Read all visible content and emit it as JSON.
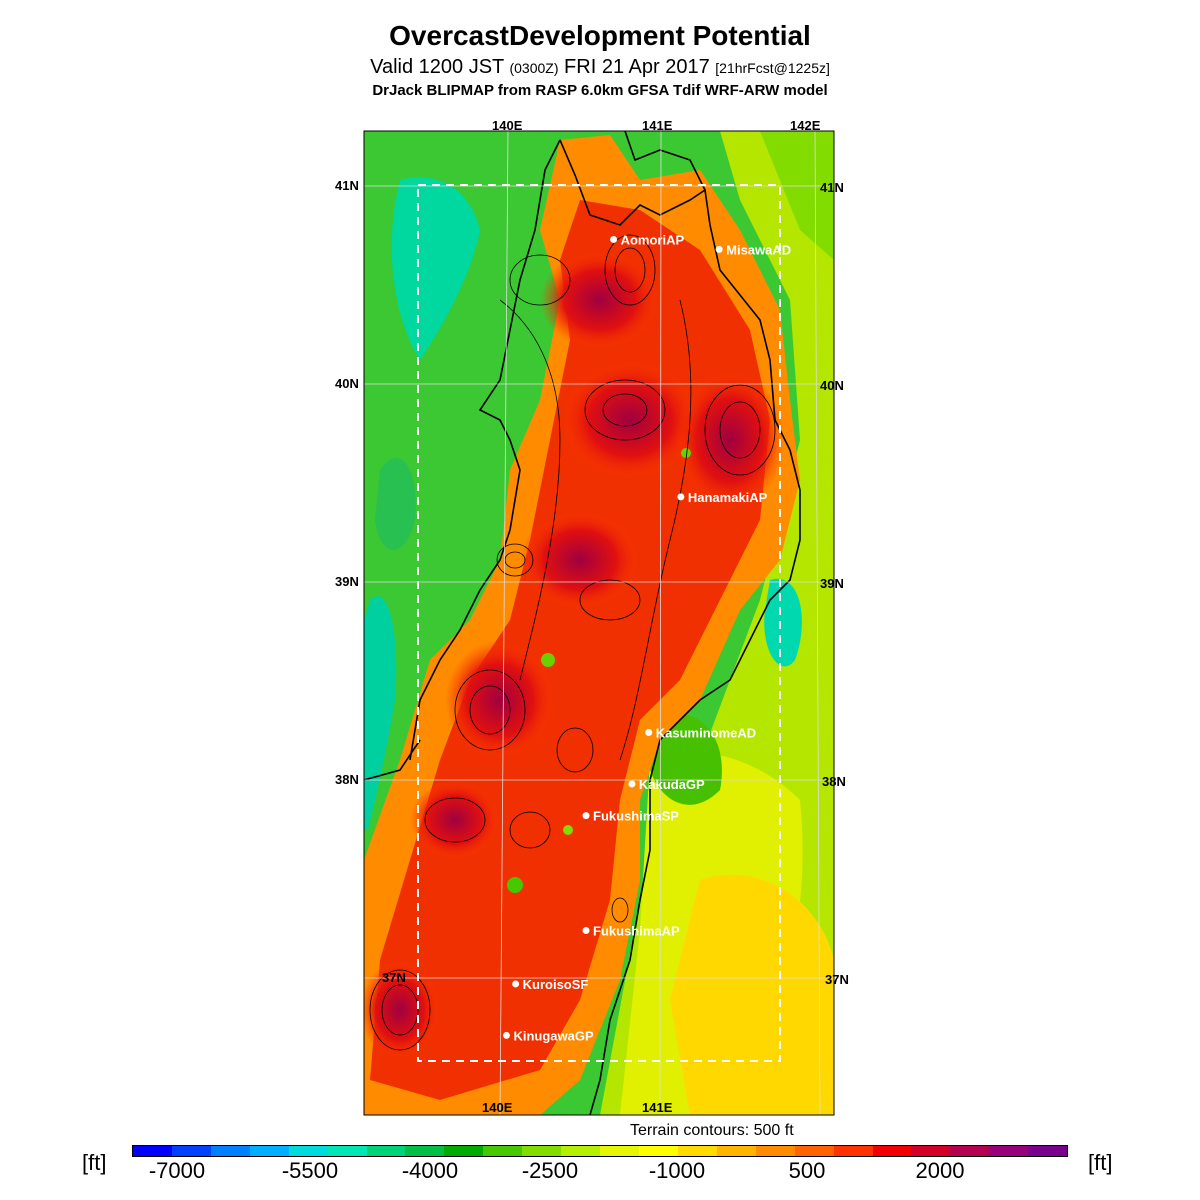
{
  "title": "OvercastDevelopment Potential",
  "subtitle": {
    "main_a": "Valid 1200 JST ",
    "utc": "(0300Z)",
    "main_b": " FRI 21 Apr 2017 ",
    "fcst": "[21hrFcst@1225z]"
  },
  "model_line": "DrJack BLIPMAP from RASP 6.0km GFSA Tdif WRF-ARW model",
  "axes": {
    "lon_top": [
      "140E",
      "141E",
      "142E"
    ],
    "lon_bottom": [
      "140E",
      "141E"
    ],
    "lat_left": [
      "41N",
      "40N",
      "39N",
      "38N",
      "37N"
    ],
    "lat_right": [
      "41N",
      "40N",
      "39N",
      "38N",
      "37N"
    ]
  },
  "locations": [
    {
      "name": "AomoriAP",
      "lat": 40.73,
      "lon": 140.69
    },
    {
      "name": "MisawaAD",
      "lat": 40.68,
      "lon": 141.38
    },
    {
      "name": "HanamakiAP",
      "lat": 39.43,
      "lon": 141.13
    },
    {
      "name": "KasuminomeAD",
      "lat": 38.24,
      "lon": 140.92
    },
    {
      "name": "KakudaGP",
      "lat": 37.98,
      "lon": 140.81
    },
    {
      "name": "FukushimaSP",
      "lat": 37.82,
      "lon": 140.51
    },
    {
      "name": "FukushimaAP",
      "lat": 37.24,
      "lon": 140.51
    },
    {
      "name": "KuroisoSF",
      "lat": 36.97,
      "lon": 140.05
    },
    {
      "name": "KinugawaGP",
      "lat": 36.71,
      "lon": 139.99
    }
  ],
  "terrain_note": "Terrain contours: 500 ft",
  "unit": "[ft]",
  "colorbar": {
    "colors": [
      "#0000ff",
      "#0040ff",
      "#0080ff",
      "#00b0ff",
      "#00dcdc",
      "#00e6b4",
      "#00d278",
      "#00be46",
      "#00aa00",
      "#46c800",
      "#82dc00",
      "#b4f000",
      "#e6f500",
      "#ffff00",
      "#ffdc00",
      "#ffb400",
      "#ff8c00",
      "#ff6400",
      "#ff3200",
      "#f00000",
      "#d20028",
      "#b40050",
      "#960078",
      "#78008c"
    ],
    "labels": [
      "-7000",
      "-5500",
      "-4000",
      "-2500",
      "-1000",
      "500",
      "2000"
    ]
  }
}
